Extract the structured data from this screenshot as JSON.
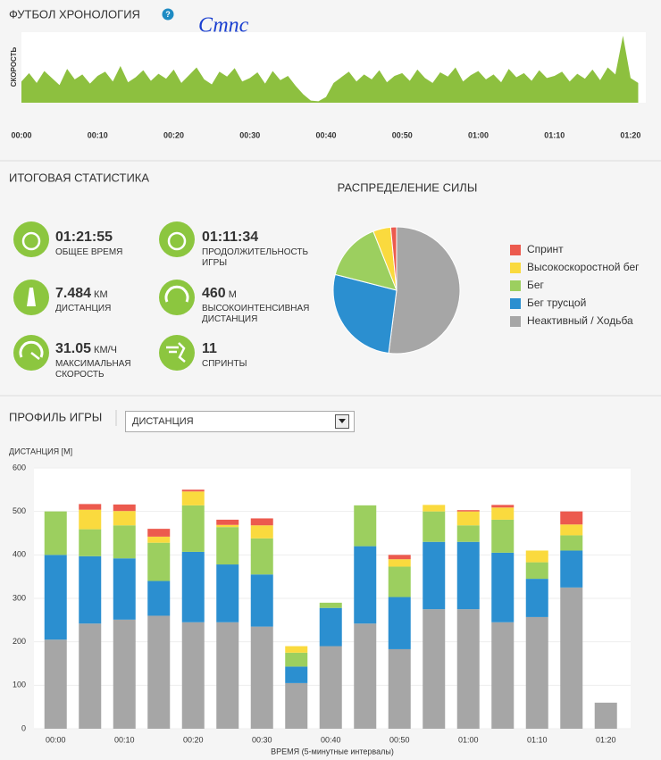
{
  "header": {
    "title": "ФУТБОЛ ХРОНОЛОГИЯ",
    "help": "?",
    "annotation": "Стпс"
  },
  "chart_data": [
    {
      "type": "area",
      "ylabel": "СКОРОСТЬ",
      "color": "#8dc03f",
      "x": [
        0,
        1,
        2,
        3,
        4,
        5,
        6,
        7,
        8,
        9,
        10,
        11,
        12,
        13,
        14,
        15,
        16,
        17,
        18,
        19,
        20,
        21,
        22,
        23,
        24,
        25,
        26,
        27,
        28,
        29,
        30,
        31,
        32,
        33,
        34,
        35,
        36,
        37,
        38,
        39,
        40,
        41,
        42,
        43,
        44,
        45,
        46,
        47,
        48,
        49,
        50,
        51,
        52,
        53,
        54,
        55,
        56,
        57,
        58,
        59,
        60,
        61,
        62,
        63,
        64,
        65,
        66,
        67,
        68,
        69,
        70,
        71,
        72,
        73,
        74,
        75,
        76,
        77,
        78,
        79,
        80,
        81
      ],
      "values": [
        30,
        42,
        28,
        45,
        35,
        25,
        48,
        33,
        40,
        27,
        38,
        44,
        30,
        52,
        29,
        36,
        46,
        31,
        41,
        34,
        47,
        28,
        39,
        50,
        33,
        26,
        44,
        37,
        49,
        30,
        35,
        43,
        27,
        45,
        32,
        38,
        24,
        12,
        3,
        2,
        8,
        28,
        36,
        44,
        30,
        40,
        33,
        46,
        29,
        38,
        42,
        31,
        47,
        35,
        28,
        43,
        37,
        50,
        30,
        39,
        45,
        33,
        40,
        29,
        48,
        36,
        42,
        31,
        46,
        35,
        38,
        44,
        30,
        41,
        34,
        47,
        32,
        50,
        40,
        95,
        35,
        28
      ],
      "xlim": [
        0,
        82
      ],
      "ylim": [
        0,
        100
      ],
      "xticks": [
        {
          "value": 0,
          "label": "00:00"
        },
        {
          "value": 10,
          "label": "00:10"
        },
        {
          "value": 20,
          "label": "00:20"
        },
        {
          "value": 30,
          "label": "00:30"
        },
        {
          "value": 40,
          "label": "00:40"
        },
        {
          "value": 50,
          "label": "00:50"
        },
        {
          "value": 60,
          "label": "01:00"
        },
        {
          "value": 70,
          "label": "01:10"
        },
        {
          "value": 80,
          "label": "01:20"
        }
      ]
    },
    {
      "type": "pie",
      "title": "РАСПРЕДЕЛЕНИЕ СИЛЫ",
      "series": [
        {
          "name": "Спринт",
          "color": "#ec5a4e",
          "value": 1.5
        },
        {
          "name": "Высокоскоростной бег",
          "color": "#fada3e",
          "value": 4.5
        },
        {
          "name": "Бег",
          "color": "#9ccf5f",
          "value": 15
        },
        {
          "name": "Бег трусцой",
          "color": "#2b8fd0",
          "value": 27
        },
        {
          "name": "Неактивный / Ходьба",
          "color": "#a6a6a6",
          "value": 52
        }
      ]
    },
    {
      "type": "stacked_bar",
      "title": "ПРОФИЛЬ ИГРЫ",
      "selector": "ДИСТАНЦИЯ",
      "ylabel": "ДИСТАНЦИЯ [М]",
      "xlabel": "ВРЕМЯ (5-минутные интервалы)",
      "categories": [
        "00:00",
        null,
        "00:10",
        null,
        "00:20",
        null,
        "00:30",
        null,
        "00:40",
        null,
        "00:50",
        null,
        "01:00",
        null,
        "01:10",
        null,
        "01:20"
      ],
      "ylim": [
        0,
        600
      ],
      "yticks": [
        0,
        100,
        200,
        300,
        400,
        500,
        600
      ],
      "grid": true,
      "series": [
        {
          "color": "#a6a6a6",
          "values": [
            205,
            242,
            251,
            260,
            245,
            245,
            235,
            105,
            190,
            242,
            183,
            275,
            275,
            245,
            257,
            325,
            60
          ]
        },
        {
          "color": "#2b8fd0",
          "values": [
            195,
            155,
            141,
            80,
            162,
            133,
            120,
            38,
            88,
            178,
            120,
            155,
            155,
            160,
            88,
            85,
            0
          ]
        },
        {
          "color": "#9ccf5f",
          "values": [
            100,
            62,
            76,
            88,
            107,
            86,
            83,
            32,
            12,
            94,
            70,
            70,
            38,
            76,
            38,
            35,
            0
          ]
        },
        {
          "color": "#fada3e",
          "values": [
            0,
            45,
            33,
            14,
            32,
            5,
            30,
            15,
            0,
            0,
            17,
            15,
            32,
            28,
            27,
            25,
            0
          ]
        },
        {
          "color": "#ec5a4e",
          "values": [
            0,
            13,
            15,
            18,
            4,
            12,
            16,
            0,
            0,
            0,
            10,
            0,
            3,
            6,
            0,
            30,
            0
          ]
        }
      ]
    }
  ],
  "summary": {
    "title": "ИТОГОВАЯ СТАТИСТИКА",
    "items": [
      {
        "value": "01:21:55",
        "label": "ОБЩЕЕ ВРЕМЯ"
      },
      {
        "value": "01:11:34",
        "label": "ПРОДОЛЖИТЕЛЬНОСТЬ ИГРЫ"
      },
      {
        "value": "7.484",
        "unit": "КМ",
        "label": "ДИСТАНЦИЯ"
      },
      {
        "value": "460",
        "unit": "М",
        "label": "ВЫСОКОИНТЕНСИВНАЯ ДИСТАНЦИЯ"
      },
      {
        "value": "31.05",
        "unit": "КМ/Ч",
        "label": "МАКСИМАЛЬНАЯ СКОРОСТЬ"
      },
      {
        "value": "11",
        "label": "СПРИНТЫ"
      }
    ]
  }
}
